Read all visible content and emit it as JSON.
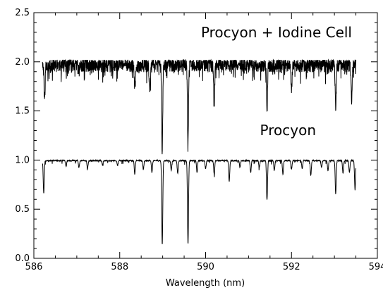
{
  "chart_data": {
    "type": "line",
    "title": "",
    "xlabel": "Wavelength (nm)",
    "ylabel": "",
    "xlim": [
      586,
      594
    ],
    "ylim": [
      0,
      2.5
    ],
    "x_ticks": [
      586,
      588,
      590,
      592,
      594
    ],
    "y_ticks": [
      0.0,
      0.5,
      1.0,
      1.5,
      2.0,
      2.5
    ],
    "x_tick_labels": [
      "586",
      "588",
      "590",
      "592",
      "594"
    ],
    "y_tick_labels": [
      "0.0",
      "0.5",
      "1.0",
      "1.5",
      "2.0",
      "2.5"
    ],
    "grid": false,
    "annotations": [
      {
        "text": "Procyon + Iodine Cell",
        "x": 590.4,
        "y": 2.25
      },
      {
        "text": "Procyon",
        "x": 590.4,
        "y": 1.3
      }
    ],
    "series": [
      {
        "x_range": [
          586.2,
          593.5
        ],
        "continuum": 1.0,
        "lines": [
          {
            "x": 586.23,
            "y": 0.67
          },
          {
            "x": 586.75,
            "y": 0.94
          },
          {
            "x": 587.05,
            "y": 0.93
          },
          {
            "x": 587.25,
            "y": 0.92
          },
          {
            "x": 587.6,
            "y": 0.96
          },
          {
            "x": 587.95,
            "y": 0.95
          },
          {
            "x": 588.35,
            "y": 0.86
          },
          {
            "x": 588.55,
            "y": 0.91
          },
          {
            "x": 588.75,
            "y": 0.88
          },
          {
            "x": 588.99,
            "y": 0.14
          },
          {
            "x": 589.2,
            "y": 0.9
          },
          {
            "x": 589.35,
            "y": 0.87
          },
          {
            "x": 589.59,
            "y": 0.15
          },
          {
            "x": 589.8,
            "y": 0.88
          },
          {
            "x": 590.0,
            "y": 0.92
          },
          {
            "x": 590.2,
            "y": 0.86
          },
          {
            "x": 590.55,
            "y": 0.79
          },
          {
            "x": 590.8,
            "y": 0.93
          },
          {
            "x": 591.05,
            "y": 0.88
          },
          {
            "x": 591.25,
            "y": 0.93
          },
          {
            "x": 591.43,
            "y": 0.6
          },
          {
            "x": 591.6,
            "y": 0.9
          },
          {
            "x": 591.8,
            "y": 0.86
          },
          {
            "x": 592.0,
            "y": 0.91
          },
          {
            "x": 592.25,
            "y": 0.92
          },
          {
            "x": 592.45,
            "y": 0.85
          },
          {
            "x": 592.7,
            "y": 0.93
          },
          {
            "x": 592.85,
            "y": 0.9
          },
          {
            "x": 593.03,
            "y": 0.66
          },
          {
            "x": 593.2,
            "y": 0.87
          },
          {
            "x": 593.35,
            "y": 0.88
          },
          {
            "x": 593.48,
            "y": 0.7
          }
        ]
      },
      {
        "x_range": [
          586.2,
          593.5
        ],
        "continuum": 1.98,
        "iodine_noise_amplitude": 0.08,
        "lines": [
          {
            "x": 586.25,
            "y": 1.62
          },
          {
            "x": 588.35,
            "y": 1.74
          },
          {
            "x": 588.7,
            "y": 1.7
          },
          {
            "x": 588.99,
            "y": 1.13
          },
          {
            "x": 589.59,
            "y": 1.16
          },
          {
            "x": 590.2,
            "y": 1.6
          },
          {
            "x": 591.43,
            "y": 1.53
          },
          {
            "x": 592.0,
            "y": 1.7
          },
          {
            "x": 593.03,
            "y": 1.52
          },
          {
            "x": 593.4,
            "y": 1.62
          }
        ]
      }
    ]
  }
}
